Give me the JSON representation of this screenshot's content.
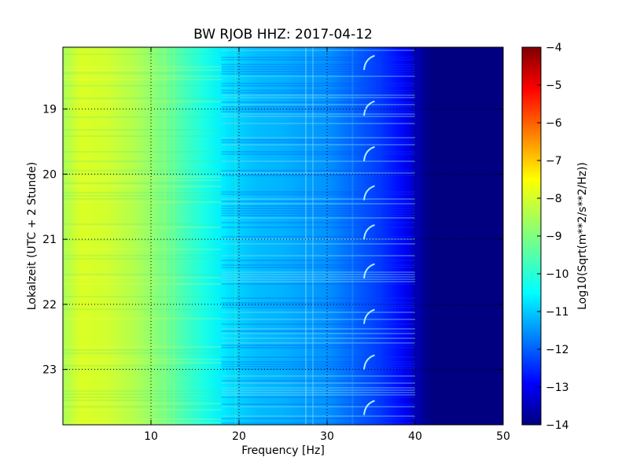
{
  "chart_data": {
    "type": "heatmap",
    "title": "BW RJOB HHZ: 2017-04-12",
    "xlabel": "Frequency [Hz]",
    "ylabel": "Lokalzeit (UTC + 2 Stunde)",
    "xlim": [
      0,
      50
    ],
    "ylim": [
      18.05,
      23.85
    ],
    "x_ticks": [
      10,
      20,
      30,
      40,
      50
    ],
    "y_ticks": [
      19,
      20,
      21,
      22,
      23
    ],
    "y_inverted": true,
    "grid": true,
    "colormap": "jet",
    "colorbar": {
      "label": "Log10(Sqrt(m**2/s**2/Hz))",
      "min": -14,
      "max": -4,
      "ticks": [
        -4,
        -5,
        -6,
        -7,
        -8,
        -9,
        -10,
        -11,
        -12,
        -13,
        -14
      ]
    },
    "spectral_profile": {
      "frequency_hz": [
        0,
        2,
        5,
        8,
        10,
        12,
        14,
        16,
        18,
        20,
        22,
        25,
        28,
        30,
        32,
        34,
        36,
        38,
        39,
        40,
        41,
        42,
        45,
        50
      ],
      "log10_amplitude": [
        -8.6,
        -8.1,
        -8.2,
        -8.5,
        -8.8,
        -9.2,
        -9.6,
        -10.0,
        -10.4,
        -10.7,
        -10.9,
        -11.0,
        -11.2,
        -11.3,
        -11.6,
        -11.9,
        -12.2,
        -12.6,
        -12.9,
        -13.4,
        -13.8,
        -14.0,
        -14.0,
        -14.0
      ]
    }
  }
}
